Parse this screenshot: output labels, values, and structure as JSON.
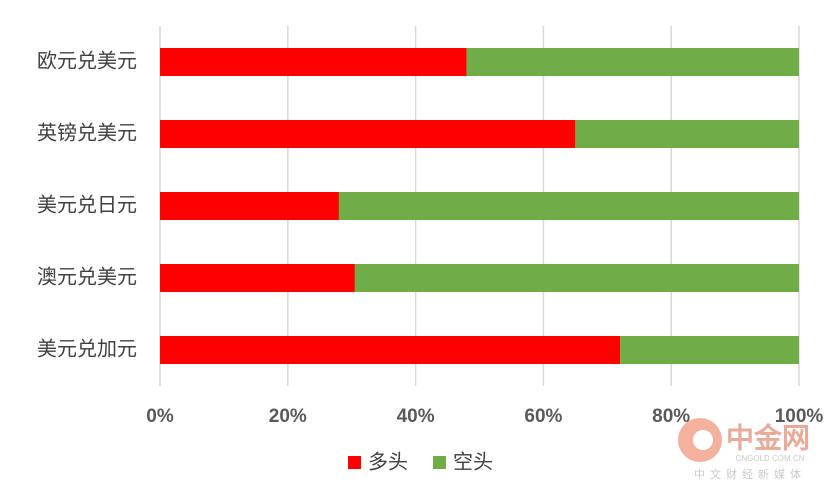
{
  "chart_data": {
    "type": "stacked-bar-horizontal",
    "categories": [
      "欧元兑美元",
      "英镑兑美元",
      "美元兑日元",
      "澳元兑美元",
      "美元兑加元"
    ],
    "series": [
      {
        "name": "多头",
        "color": "#ff0000",
        "values": [
          48,
          65,
          28,
          30.5,
          72
        ]
      },
      {
        "name": "空头",
        "color": "#70ad47",
        "values": [
          52,
          35,
          72,
          69.5,
          28
        ]
      }
    ],
    "xlim": [
      0,
      100
    ],
    "xticks": [
      {
        "value": 0,
        "label": "0%"
      },
      {
        "value": 20,
        "label": "20%"
      },
      {
        "value": 40,
        "label": "40%"
      },
      {
        "value": 60,
        "label": "60%"
      },
      {
        "value": 80,
        "label": "80%"
      },
      {
        "value": 100,
        "label": "100%"
      }
    ],
    "grid": true,
    "legend": "bottom"
  },
  "watermark": {
    "name": "中金网",
    "site": "CNGOLD.COM.CN",
    "slogan": "中文财经新媒体"
  }
}
